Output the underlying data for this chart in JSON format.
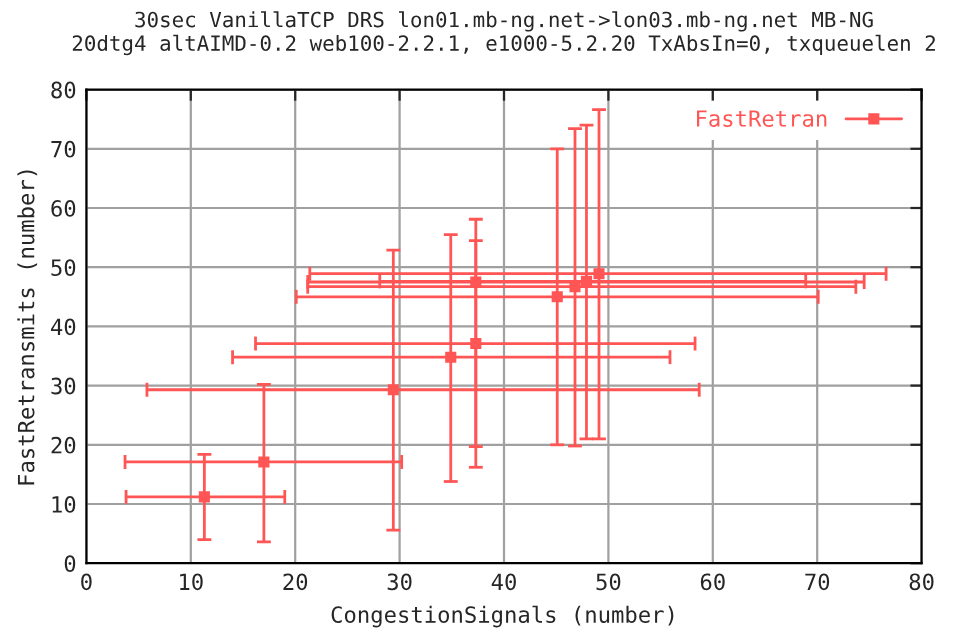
{
  "chart_data": {
    "type": "scatter",
    "title": "30sec VanillaTCP DRS lon01.mb-ng.net->lon03.mb-ng.net MB-NG\n20dtg4 altAIMD-0.2 web100-2.2.1, e1000-5.2.20 TxAbsIn=0, txqueuelen 2",
    "xlabel": "CongestionSignals (number)",
    "ylabel": "FastRetransmits (number)",
    "xlim": [
      0,
      80
    ],
    "ylim": [
      0,
      80
    ],
    "xticks": [
      0,
      10,
      20,
      30,
      40,
      50,
      60,
      70,
      80
    ],
    "yticks": [
      0,
      10,
      20,
      30,
      40,
      50,
      60,
      70,
      80
    ],
    "grid": true,
    "legend": "top right",
    "marker": "square",
    "series": [
      {
        "name": "FastRetran",
        "color": "#ff5555",
        "x": [
          11.3,
          17,
          29.4,
          34.9,
          37.3,
          37.3,
          45.1,
          46.8,
          47.9,
          49.1
        ],
        "values": [
          11.2,
          17.1,
          29.3,
          34.8,
          37.1,
          47.5,
          45.0,
          46.7,
          47.6,
          48.9
        ],
        "xerrors": [
          [
            3.8,
            19
          ],
          [
            3.7,
            30.2
          ],
          [
            5.8,
            58.7
          ],
          [
            14.0,
            55.9
          ],
          [
            16.2,
            58.3
          ],
          [
            21.2,
            74.5
          ],
          [
            20.1,
            70.1
          ],
          [
            21.2,
            73.7
          ],
          [
            28.1,
            68.9
          ],
          [
            21.4,
            76.6
          ]
        ],
        "errors": [
          [
            4,
            18.4
          ],
          [
            3.6,
            30.2
          ],
          [
            5.6,
            52.9
          ],
          [
            13.8,
            55.5
          ],
          [
            16.2,
            58.1
          ],
          [
            19.7,
            54.5
          ],
          [
            20,
            70
          ],
          [
            19.8,
            73.4
          ],
          [
            21,
            74
          ],
          [
            21,
            76.6
          ]
        ]
      }
    ]
  }
}
